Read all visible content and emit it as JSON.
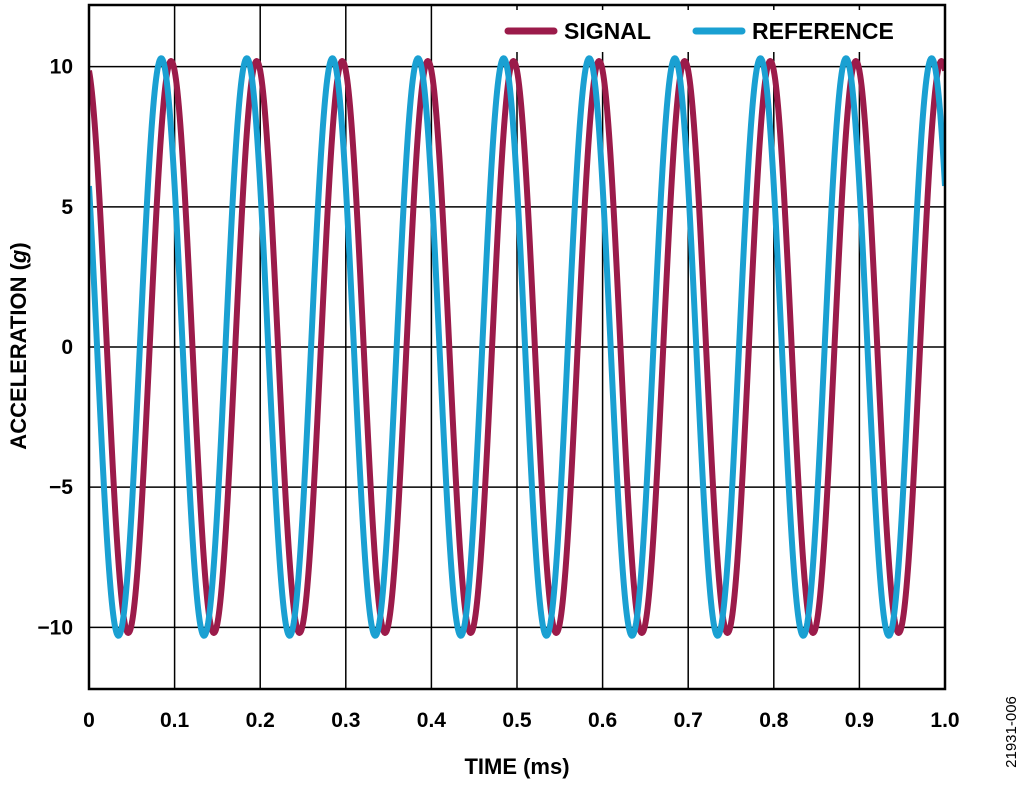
{
  "figure_id": "21931-006",
  "chart_data": {
    "type": "line",
    "xlabel": "TIME (ms)",
    "ylabel_prefix": "ACCELERATION (",
    "ylabel_unit": "g",
    "ylabel_suffix": ")",
    "xlim": [
      0,
      1.0
    ],
    "ylim": [
      -12.2,
      12.2
    ],
    "x_ticks": [
      0,
      0.1,
      0.2,
      0.3,
      0.4,
      0.5,
      0.6,
      0.7,
      0.8,
      0.9,
      1.0
    ],
    "x_tick_labels": [
      "0",
      "0.1",
      "0.2",
      "0.3",
      "0.4",
      "0.5",
      "0.6",
      "0.7",
      "0.8",
      "0.9",
      "1.0"
    ],
    "y_ticks": [
      10,
      5,
      0,
      -5,
      -10
    ],
    "y_tick_labels": [
      "10",
      "5",
      "0",
      "−5",
      "−10"
    ],
    "grid": true,
    "legend_position": "top-right",
    "series": [
      {
        "name": "SIGNAL",
        "color": "#9b1b4a",
        "waveform": "sine",
        "amplitude": 10.2,
        "frequency_khz": 10,
        "phase_rad": 1.83
      },
      {
        "name": "REFERENCE",
        "color": "#1aa0d2",
        "waveform": "sine",
        "amplitude": 10.3,
        "frequency_khz": 10,
        "phase_rad": 2.55
      }
    ]
  }
}
